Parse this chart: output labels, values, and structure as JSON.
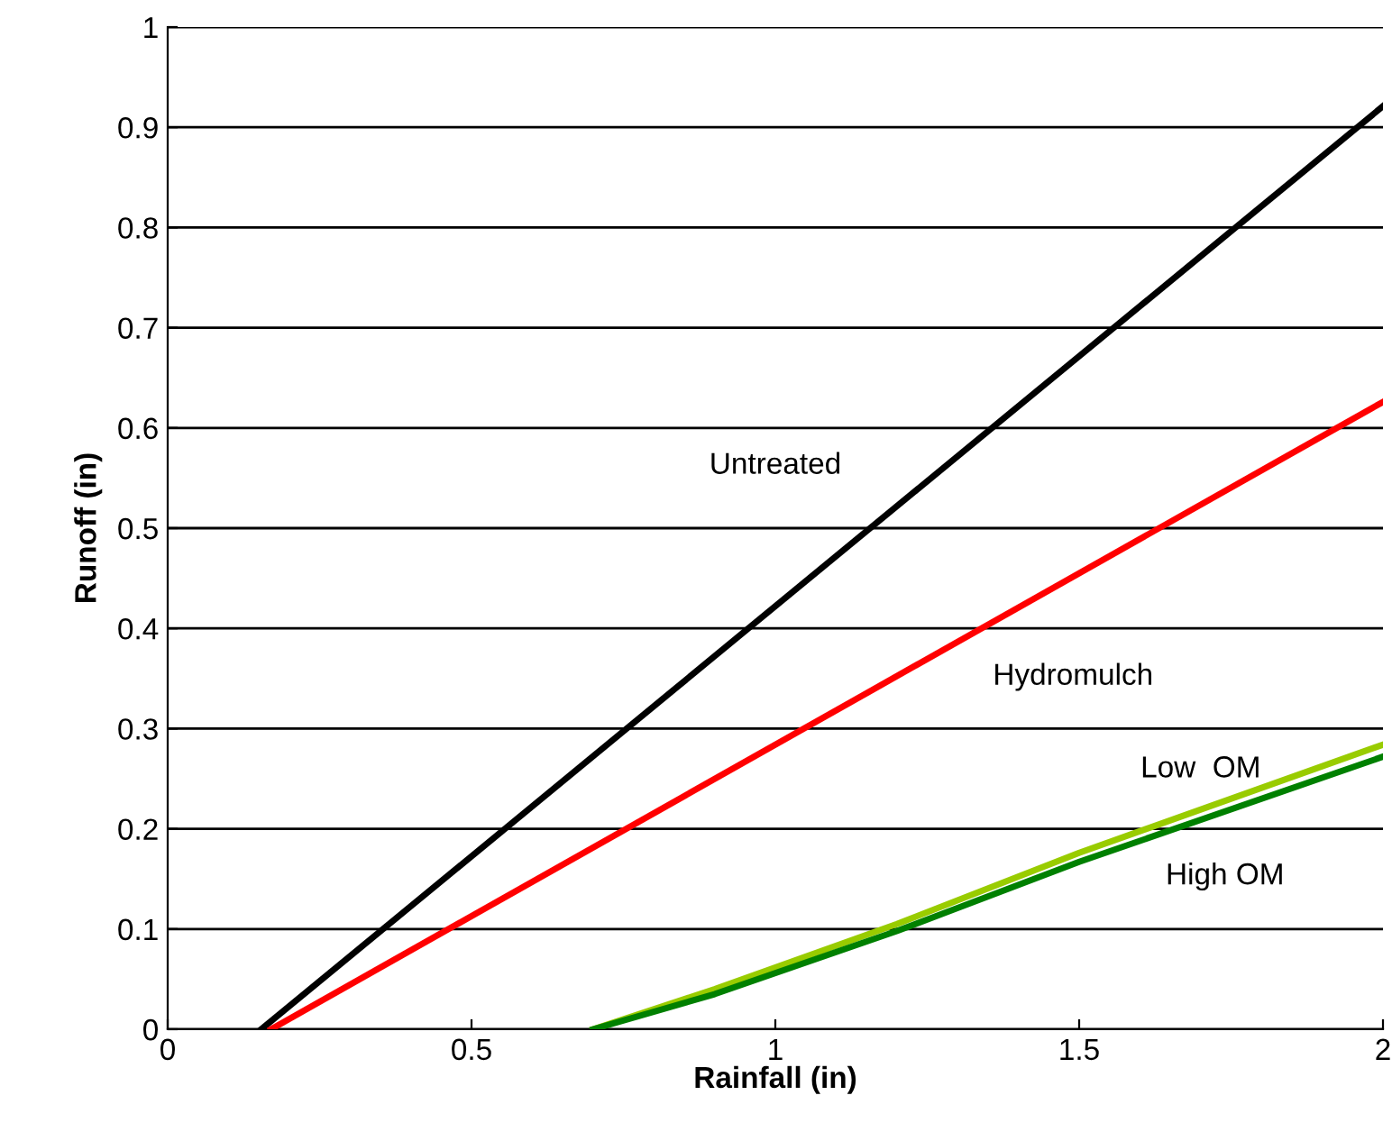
{
  "chart_data": {
    "type": "line",
    "xlabel": "Rainfall (in)",
    "ylabel": "Runoff (in)",
    "series": [
      {
        "name": "Untreated",
        "color": "#000000",
        "x": [
          0.154,
          2
        ],
        "values": [
          0,
          0.921
        ]
      },
      {
        "name": "Hydromulch",
        "color": "#ff0000",
        "x": [
          0.17,
          2
        ],
        "values": [
          0,
          0.626
        ]
      },
      {
        "name": "Low  OM",
        "color": "#99cc00",
        "x": [
          0.7,
          0.9,
          1.2,
          1.5,
          2
        ],
        "values": [
          0,
          0.04,
          0.105,
          0.176,
          0.284
        ]
      },
      {
        "name": "High OM",
        "color": "#008000",
        "x": [
          0.7,
          0.9,
          1.2,
          1.5,
          2
        ],
        "values": [
          0,
          0.035,
          0.098,
          0.167,
          0.272
        ]
      }
    ],
    "xlim": [
      0,
      2
    ],
    "xticks": [
      0,
      0.5,
      1,
      1.5,
      2
    ],
    "ylim": [
      0,
      1
    ],
    "yticks": [
      0,
      0.1,
      0.2,
      0.3,
      0.4,
      0.5,
      0.6,
      0.7,
      0.8,
      0.9,
      1
    ],
    "grid": "y",
    "marker": "none",
    "line_style": "solid"
  }
}
